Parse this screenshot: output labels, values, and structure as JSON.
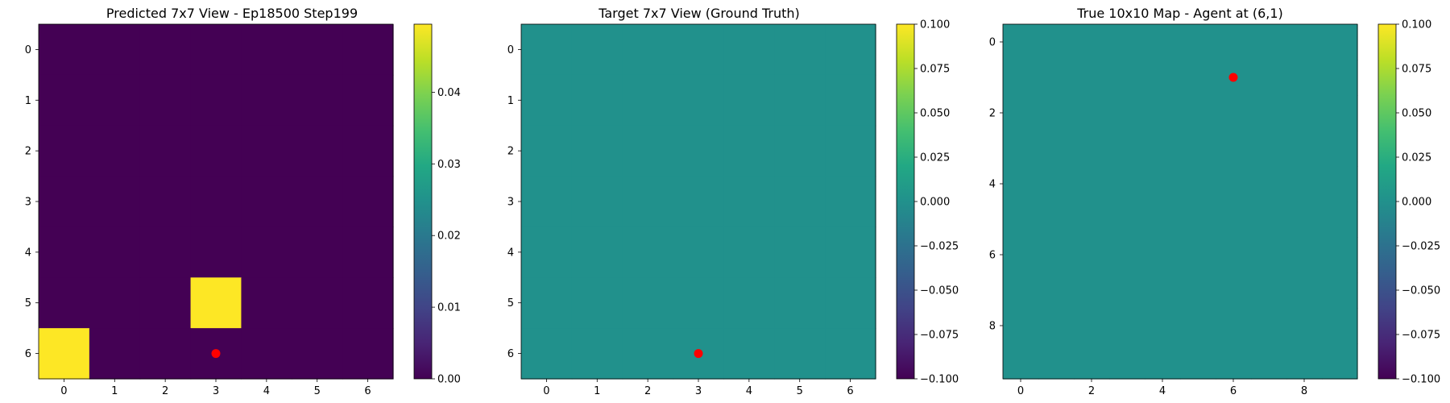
{
  "chart_data": [
    {
      "type": "heatmap",
      "title": "Predicted 7x7 View - Ep18500 Step199",
      "grid_size": 7,
      "x_ticks": [
        0,
        1,
        2,
        3,
        4,
        5,
        6
      ],
      "y_ticks": [
        0,
        1,
        2,
        3,
        4,
        5,
        6
      ],
      "values": [
        [
          0,
          0,
          0,
          0,
          0,
          0,
          0
        ],
        [
          0,
          0,
          0,
          0,
          0,
          0,
          0
        ],
        [
          0,
          0,
          0,
          0,
          0,
          0,
          0
        ],
        [
          0,
          0,
          0,
          0,
          0,
          0,
          0
        ],
        [
          0,
          0,
          0,
          0,
          0,
          0,
          0
        ],
        [
          0,
          0,
          0,
          0.0495,
          0,
          0,
          0
        ],
        [
          0.0495,
          0,
          0,
          0,
          0,
          0,
          0
        ]
      ],
      "vmin": 0.0,
      "vmax": 0.0495,
      "colormap": "viridis",
      "marker": {
        "x": 3,
        "y": 6,
        "color": "#ff0000"
      },
      "colorbar_ticks": [
        "0.00",
        "0.01",
        "0.02",
        "0.03",
        "0.04"
      ],
      "colorbar_tick_values": [
        0.0,
        0.01,
        0.02,
        0.03,
        0.04
      ]
    },
    {
      "type": "heatmap",
      "title": "Target 7x7 View (Ground Truth)",
      "grid_size": 7,
      "x_ticks": [
        0,
        1,
        2,
        3,
        4,
        5,
        6
      ],
      "y_ticks": [
        0,
        1,
        2,
        3,
        4,
        5,
        6
      ],
      "fill_value": 0.0,
      "vmin": -0.1,
      "vmax": 0.1,
      "colormap": "viridis",
      "marker": {
        "x": 3,
        "y": 6,
        "color": "#ff0000"
      },
      "colorbar_ticks": [
        "0.100",
        "0.075",
        "0.050",
        "0.025",
        "0.000",
        "−0.025",
        "−0.050",
        "−0.075",
        "−0.100"
      ],
      "colorbar_tick_values": [
        0.1,
        0.075,
        0.05,
        0.025,
        0.0,
        -0.025,
        -0.05,
        -0.075,
        -0.1
      ]
    },
    {
      "type": "heatmap",
      "title": "True 10x10 Map - Agent at (6,1)",
      "grid_size": 10,
      "x_ticks": [
        0,
        2,
        4,
        6,
        8
      ],
      "y_ticks": [
        0,
        2,
        4,
        6,
        8
      ],
      "fill_value": 0.0,
      "vmin": -0.1,
      "vmax": 0.1,
      "colormap": "viridis",
      "marker": {
        "x": 6,
        "y": 1,
        "color": "#ff0000"
      },
      "colorbar_ticks": [
        "0.100",
        "0.075",
        "0.050",
        "0.025",
        "0.000",
        "−0.025",
        "−0.050",
        "−0.075",
        "−0.100"
      ],
      "colorbar_tick_values": [
        0.1,
        0.075,
        0.05,
        0.025,
        0.0,
        -0.025,
        -0.05,
        -0.075,
        -0.1
      ]
    }
  ]
}
